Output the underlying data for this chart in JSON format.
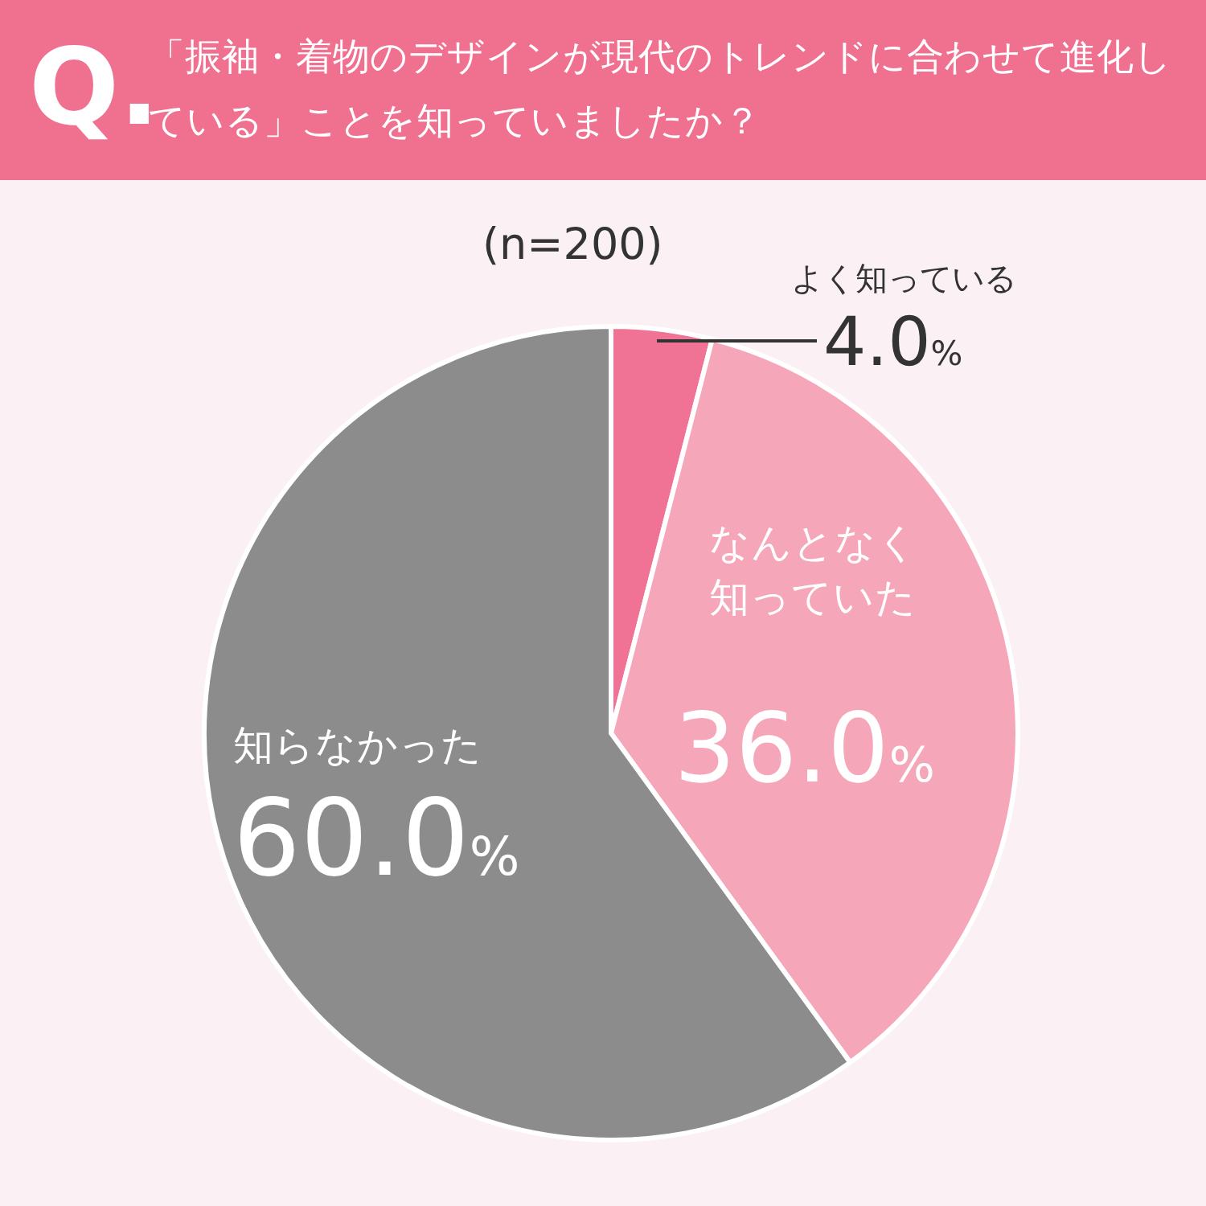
{
  "chart_data": {
    "type": "pie",
    "title": "「振袖・着物のデザインが現代のトレンドに合わせて進化している」ことを知っていましたか？",
    "subtitle": "(n=200)",
    "annotations": [
      "Q."
    ],
    "categories": [
      "よく知っている",
      "なんとなく知っていた",
      "知らなかった"
    ],
    "values": [
      4.0,
      36.0,
      60.0
    ],
    "colors": [
      "#f07294",
      "#f5a6b9",
      "#8c8c8c"
    ],
    "value_labels": [
      "4.0%",
      "36.0%",
      "60.0%"
    ]
  }
}
